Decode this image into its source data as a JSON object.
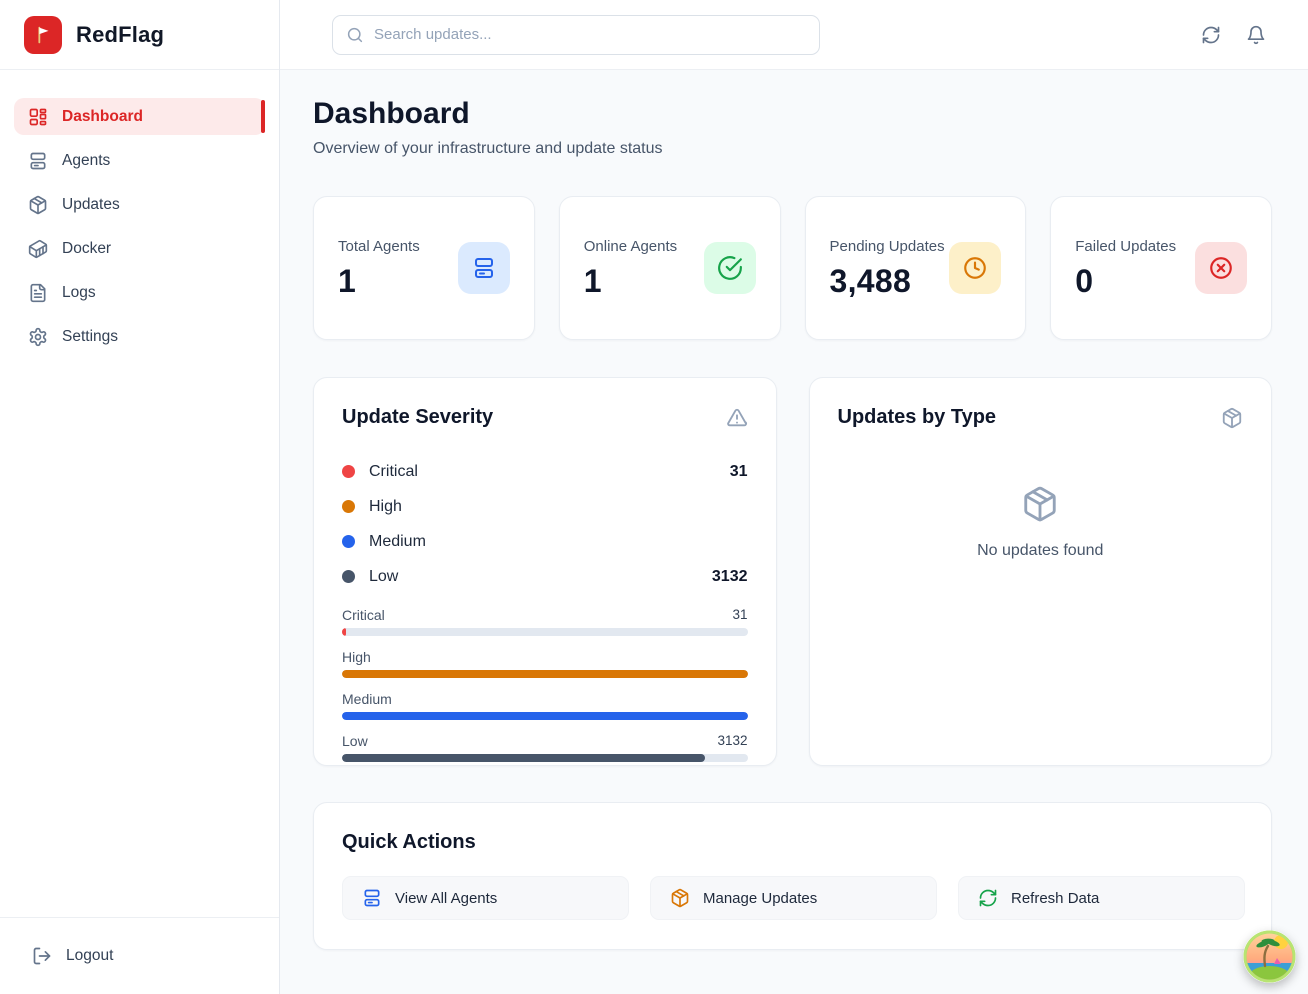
{
  "brand": {
    "name": "RedFlag",
    "logo_color": "#dc2626"
  },
  "sidebar": {
    "items": [
      {
        "label": "Dashboard",
        "icon": "dashboard-grid-icon",
        "active": true
      },
      {
        "label": "Agents",
        "icon": "server-icon",
        "active": false
      },
      {
        "label": "Updates",
        "icon": "package-icon",
        "active": false
      },
      {
        "label": "Docker",
        "icon": "container-icon",
        "active": false
      },
      {
        "label": "Logs",
        "icon": "file-text-icon",
        "active": false
      },
      {
        "label": "Settings",
        "icon": "gear-icon",
        "active": false
      }
    ],
    "logout_label": "Logout"
  },
  "topbar": {
    "search_placeholder": "Search updates...",
    "icons": [
      "refresh-icon",
      "bell-icon"
    ]
  },
  "header": {
    "title": "Dashboard",
    "subtitle": "Overview of your infrastructure and update status"
  },
  "stats": [
    {
      "label": "Total Agents",
      "value": "1",
      "icon": "server-icon",
      "color": "#2563eb",
      "bg": "#dbeafe"
    },
    {
      "label": "Online Agents",
      "value": "1",
      "icon": "check-circle-icon",
      "color": "#16a34a",
      "bg": "#dcfce7"
    },
    {
      "label": "Pending Updates",
      "value": "3,488",
      "icon": "clock-icon",
      "color": "#d97706",
      "bg": "#fdf0c9"
    },
    {
      "label": "Failed Updates",
      "value": "0",
      "icon": "x-circle-icon",
      "color": "#dc2626",
      "bg": "#fbdfdf"
    }
  ],
  "severity": {
    "title": "Update Severity",
    "header_icon": "alert-triangle-icon",
    "legend": [
      {
        "label": "Critical",
        "value": "31",
        "color": "#ef4444"
      },
      {
        "label": "High",
        "value": "",
        "color": "#d97706"
      },
      {
        "label": "Medium",
        "value": "",
        "color": "#2563eb"
      },
      {
        "label": "Low",
        "value": "3132",
        "color": "#475569"
      }
    ],
    "bars": [
      {
        "label": "Critical",
        "value": "31",
        "pct": 1,
        "color": "#ef4444"
      },
      {
        "label": "High",
        "value": "",
        "pct": 100,
        "color": "#d97706"
      },
      {
        "label": "Medium",
        "value": "",
        "pct": 100,
        "color": "#2563eb"
      },
      {
        "label": "Low",
        "value": "3132",
        "pct": 89.5,
        "color": "#475569"
      }
    ]
  },
  "updates_by_type": {
    "title": "Updates by Type",
    "header_icon": "package-icon",
    "empty_icon": "package-icon",
    "empty_text": "No updates found"
  },
  "quick_actions": {
    "title": "Quick Actions",
    "actions": [
      {
        "label": "View All Agents",
        "icon": "server-icon",
        "color": "#2563eb"
      },
      {
        "label": "Manage Updates",
        "icon": "package-icon",
        "color": "#d97706"
      },
      {
        "label": "Refresh Data",
        "icon": "refresh-icon",
        "color": "#16a34a"
      }
    ]
  },
  "theme": {
    "accent": "#dc2626",
    "page_bg": "#f8fafc",
    "track": "#e2e8f0"
  }
}
